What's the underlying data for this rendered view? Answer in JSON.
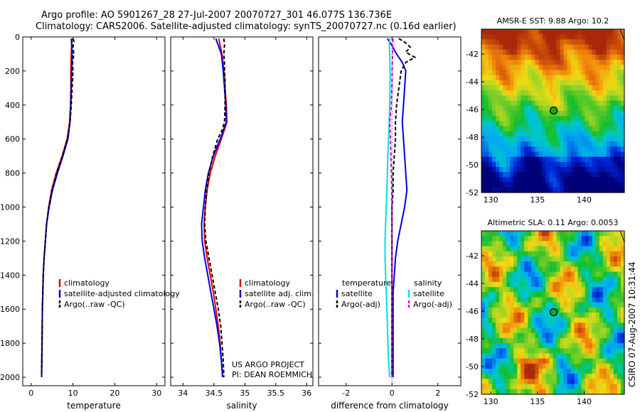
{
  "header": {
    "line1": "Argo profile: AO 5901267_28 27-Jul-2007 20070727_301 46.077S 136.736E",
    "line2": "Climatology: CARS2006. Satellite-adjusted climatology: synTS_20070727.nc (0.16d earlier)"
  },
  "side_stamp": "CSIRO 07-Aug-2007 10:31:44",
  "project_note": [
    "US ARGO PROJECT",
    "PI: DEAN ROEMMICH"
  ],
  "colors": {
    "red": "#e00000",
    "blue": "#0000e0",
    "black": "#000000",
    "cyan": "#00e0e0",
    "magenta": "#e000e0"
  },
  "chart_data": [
    {
      "type": "line",
      "id": "temperature",
      "xlabel": "temperature",
      "xlim": [
        -2,
        32
      ],
      "xticks": [
        0,
        10,
        20,
        30
      ],
      "ylim": [
        2050,
        0
      ],
      "yticks": [
        0,
        200,
        400,
        600,
        800,
        1000,
        1200,
        1400,
        1600,
        1800,
        2000
      ],
      "legend": [
        "climatology",
        "satellite-adjusted climatology",
        "Argo(..raw -QC)"
      ],
      "series": [
        {
          "name": "climatology",
          "color": "red",
          "dash": "",
          "depth": [
            10,
            50,
            100,
            200,
            300,
            400,
            500,
            600,
            700,
            800,
            900,
            1000,
            1100,
            1200,
            1300,
            1400,
            1500,
            1600,
            1800,
            2000
          ],
          "values": [
            9.8,
            9.7,
            9.6,
            9.5,
            9.5,
            9.4,
            9.2,
            8.6,
            7.4,
            6.0,
            4.9,
            4.2,
            3.7,
            3.4,
            3.1,
            2.9,
            2.8,
            2.7,
            2.6,
            2.5
          ]
        },
        {
          "name": "satellite-adjusted climatology",
          "color": "blue",
          "dash": "",
          "depth": [
            10,
            50,
            100,
            200,
            300,
            400,
            500,
            600,
            700,
            800,
            900,
            1000,
            1100,
            1200,
            1300,
            1400,
            1500,
            1600,
            1800,
            2000
          ],
          "values": [
            9.6,
            9.7,
            9.8,
            9.7,
            9.6,
            9.5,
            9.3,
            8.8,
            7.6,
            6.3,
            5.1,
            4.3,
            3.7,
            3.4,
            3.1,
            2.9,
            2.8,
            2.7,
            2.6,
            2.5
          ]
        },
        {
          "name": "Argo(..raw -QC)",
          "color": "black",
          "dash": "5,3",
          "depth": [
            10,
            30,
            60,
            100,
            150,
            200,
            250,
            300,
            400,
            500,
            600,
            700,
            800,
            900,
            1000,
            1100,
            1200,
            1300,
            1400,
            1500,
            1600,
            1800,
            2000
          ],
          "values": [
            10.1,
            10.2,
            10.0,
            10.2,
            9.9,
            10.0,
            9.9,
            9.8,
            9.6,
            9.3,
            8.7,
            7.5,
            6.1,
            5.0,
            4.2,
            3.7,
            3.4,
            3.1,
            2.9,
            2.8,
            2.7,
            2.6,
            2.5
          ]
        }
      ]
    },
    {
      "type": "line",
      "id": "salinity",
      "xlabel": "salinity",
      "xlim": [
        33.8,
        36.1
      ],
      "xticks": [
        34,
        34.5,
        35,
        35.5,
        36
      ],
      "ylim": [
        2050,
        0
      ],
      "legend": [
        "climatology",
        "satellite adj. clim.",
        "Argo(..raw -QC)"
      ],
      "series": [
        {
          "name": "climatology",
          "color": "red",
          "dash": "",
          "depth": [
            10,
            50,
            100,
            200,
            300,
            400,
            500,
            600,
            700,
            800,
            900,
            1000,
            1100,
            1200,
            1300,
            1400,
            1500,
            1600,
            1700,
            1800,
            1900,
            2000
          ],
          "values": [
            34.58,
            34.6,
            34.63,
            34.66,
            34.68,
            34.7,
            34.71,
            34.62,
            34.52,
            34.44,
            34.39,
            34.36,
            34.34,
            34.35,
            34.39,
            34.44,
            34.49,
            34.53,
            34.57,
            34.6,
            34.62,
            34.64
          ]
        },
        {
          "name": "satellite adj. clim.",
          "color": "blue",
          "dash": "",
          "depth": [
            10,
            50,
            100,
            200,
            300,
            400,
            500,
            600,
            700,
            800,
            900,
            1000,
            1100,
            1200,
            1300,
            1400,
            1500,
            1600,
            1700,
            1800,
            1900,
            2000
          ],
          "values": [
            34.53,
            34.57,
            34.62,
            34.65,
            34.67,
            34.69,
            34.7,
            34.6,
            34.49,
            34.41,
            34.36,
            34.33,
            34.3,
            34.31,
            34.35,
            34.4,
            34.45,
            34.5,
            34.55,
            34.59,
            34.62,
            34.64
          ]
        },
        {
          "name": "Argo(..raw -QC)",
          "color": "black",
          "dash": "5,3",
          "depth": [
            10,
            50,
            100,
            150,
            200,
            250,
            300,
            400,
            500,
            550,
            600,
            700,
            800,
            900,
            1000,
            1100,
            1200,
            1300,
            1400,
            1500,
            1600,
            1700,
            1800,
            1900,
            2000
          ],
          "values": [
            34.66,
            34.67,
            34.66,
            34.67,
            34.67,
            34.68,
            34.68,
            34.68,
            34.67,
            34.63,
            34.56,
            34.48,
            34.42,
            34.38,
            34.36,
            34.35,
            34.37,
            34.42,
            34.47,
            34.52,
            34.57,
            34.61,
            34.63,
            34.65,
            34.66
          ]
        }
      ]
    },
    {
      "type": "line",
      "id": "difference",
      "xlabel": "difference from climatology",
      "xlim": [
        -3.2,
        3.0
      ],
      "xticks": [
        -2,
        0,
        2
      ],
      "ylim": [
        2050,
        0
      ],
      "legend_left_title": "temperature",
      "legend_left": [
        "satellite",
        "Argo(-adj)"
      ],
      "legend_right_title": "salinity",
      "legend_right": [
        "satellite",
        "Argo(-adj)"
      ],
      "series": [
        {
          "name": "temperature satellite",
          "color": "blue",
          "dash": "",
          "depth": [
            10,
            50,
            100,
            150,
            200,
            300,
            400,
            500,
            600,
            700,
            800,
            900,
            1000,
            1100,
            1200,
            1300,
            1400,
            1500,
            1600,
            1700,
            1800,
            1900,
            2000
          ],
          "values": [
            -0.2,
            0.0,
            0.2,
            0.45,
            0.6,
            0.55,
            0.5,
            0.45,
            0.5,
            0.55,
            0.6,
            0.65,
            0.55,
            0.4,
            0.25,
            0.15,
            0.1,
            0.05,
            0.05,
            0.05,
            0.05,
            0.05,
            0.05
          ]
        },
        {
          "name": "temperature Argo(-adj)",
          "color": "black",
          "dash": "5,3",
          "depth": [
            10,
            30,
            60,
            90,
            120,
            150,
            200,
            250,
            300,
            400,
            500,
            600,
            700,
            800,
            900,
            1000,
            1100,
            1200,
            1300,
            1400,
            1500,
            1600,
            1700,
            1800,
            1900,
            2000
          ],
          "values": [
            0.3,
            0.55,
            0.8,
            0.6,
            1.0,
            0.6,
            0.4,
            0.35,
            0.3,
            0.2,
            0.15,
            0.15,
            0.1,
            0.05,
            0.05,
            0.0,
            0.0,
            0.0,
            0.0,
            0.0,
            0.0,
            0.0,
            0.0,
            0.0,
            0.0,
            0.0
          ]
        },
        {
          "name": "salinity satellite",
          "color": "cyan",
          "dash": "",
          "depth": [
            10,
            50,
            100,
            200,
            300,
            400,
            500,
            600,
            700,
            800,
            900,
            1000,
            1100,
            1200,
            1300,
            1400,
            1500,
            1600,
            1700,
            1800,
            1900,
            2000
          ],
          "values": [
            -0.1,
            -0.12,
            -0.1,
            -0.08,
            -0.08,
            -0.1,
            -0.12,
            -0.15,
            -0.18,
            -0.2,
            -0.22,
            -0.25,
            -0.28,
            -0.3,
            -0.3,
            -0.28,
            -0.25,
            -0.22,
            -0.2,
            -0.18,
            -0.15,
            -0.1
          ]
        },
        {
          "name": "salinity Argo(-adj)",
          "color": "magenta",
          "dash": "5,3",
          "depth": [
            10,
            50,
            100,
            200,
            300,
            400,
            500,
            600,
            700,
            800,
            900,
            1000,
            1100,
            1200,
            1300,
            1400,
            1500,
            1600,
            1700,
            1800,
            1900,
            2000
          ],
          "values": [
            0.05,
            0.03,
            0.02,
            0.01,
            0.0,
            -0.03,
            -0.1,
            -0.07,
            -0.05,
            -0.03,
            -0.01,
            0.0,
            0.0,
            0.0,
            0.0,
            0.0,
            0.0,
            0.0,
            0.0,
            0.0,
            0.0,
            0.0
          ]
        }
      ]
    },
    {
      "type": "heatmap",
      "id": "sst_map",
      "title": "AMSR-E SST: 9.88 Argo: 10.2",
      "xticks": [
        130,
        135,
        140
      ],
      "yticks": [
        -42,
        -44,
        -46,
        -48,
        -50,
        -52
      ],
      "xlim": [
        129,
        144.3
      ],
      "ylim": [
        -52,
        -40.2
      ],
      "marker": {
        "lon": 136.736,
        "lat": -46.077
      }
    },
    {
      "type": "heatmap",
      "id": "sla_map",
      "title": "Altimetric SLA: 0.11 Argo: 0.0053",
      "xticks": [
        130,
        135,
        140
      ],
      "yticks": [
        -42,
        -44,
        -46,
        -48,
        -50,
        -52
      ],
      "xlim": [
        129,
        144.3
      ],
      "ylim": [
        -52,
        -40.2
      ],
      "marker": {
        "lon": 136.736,
        "lat": -46.077
      }
    }
  ]
}
